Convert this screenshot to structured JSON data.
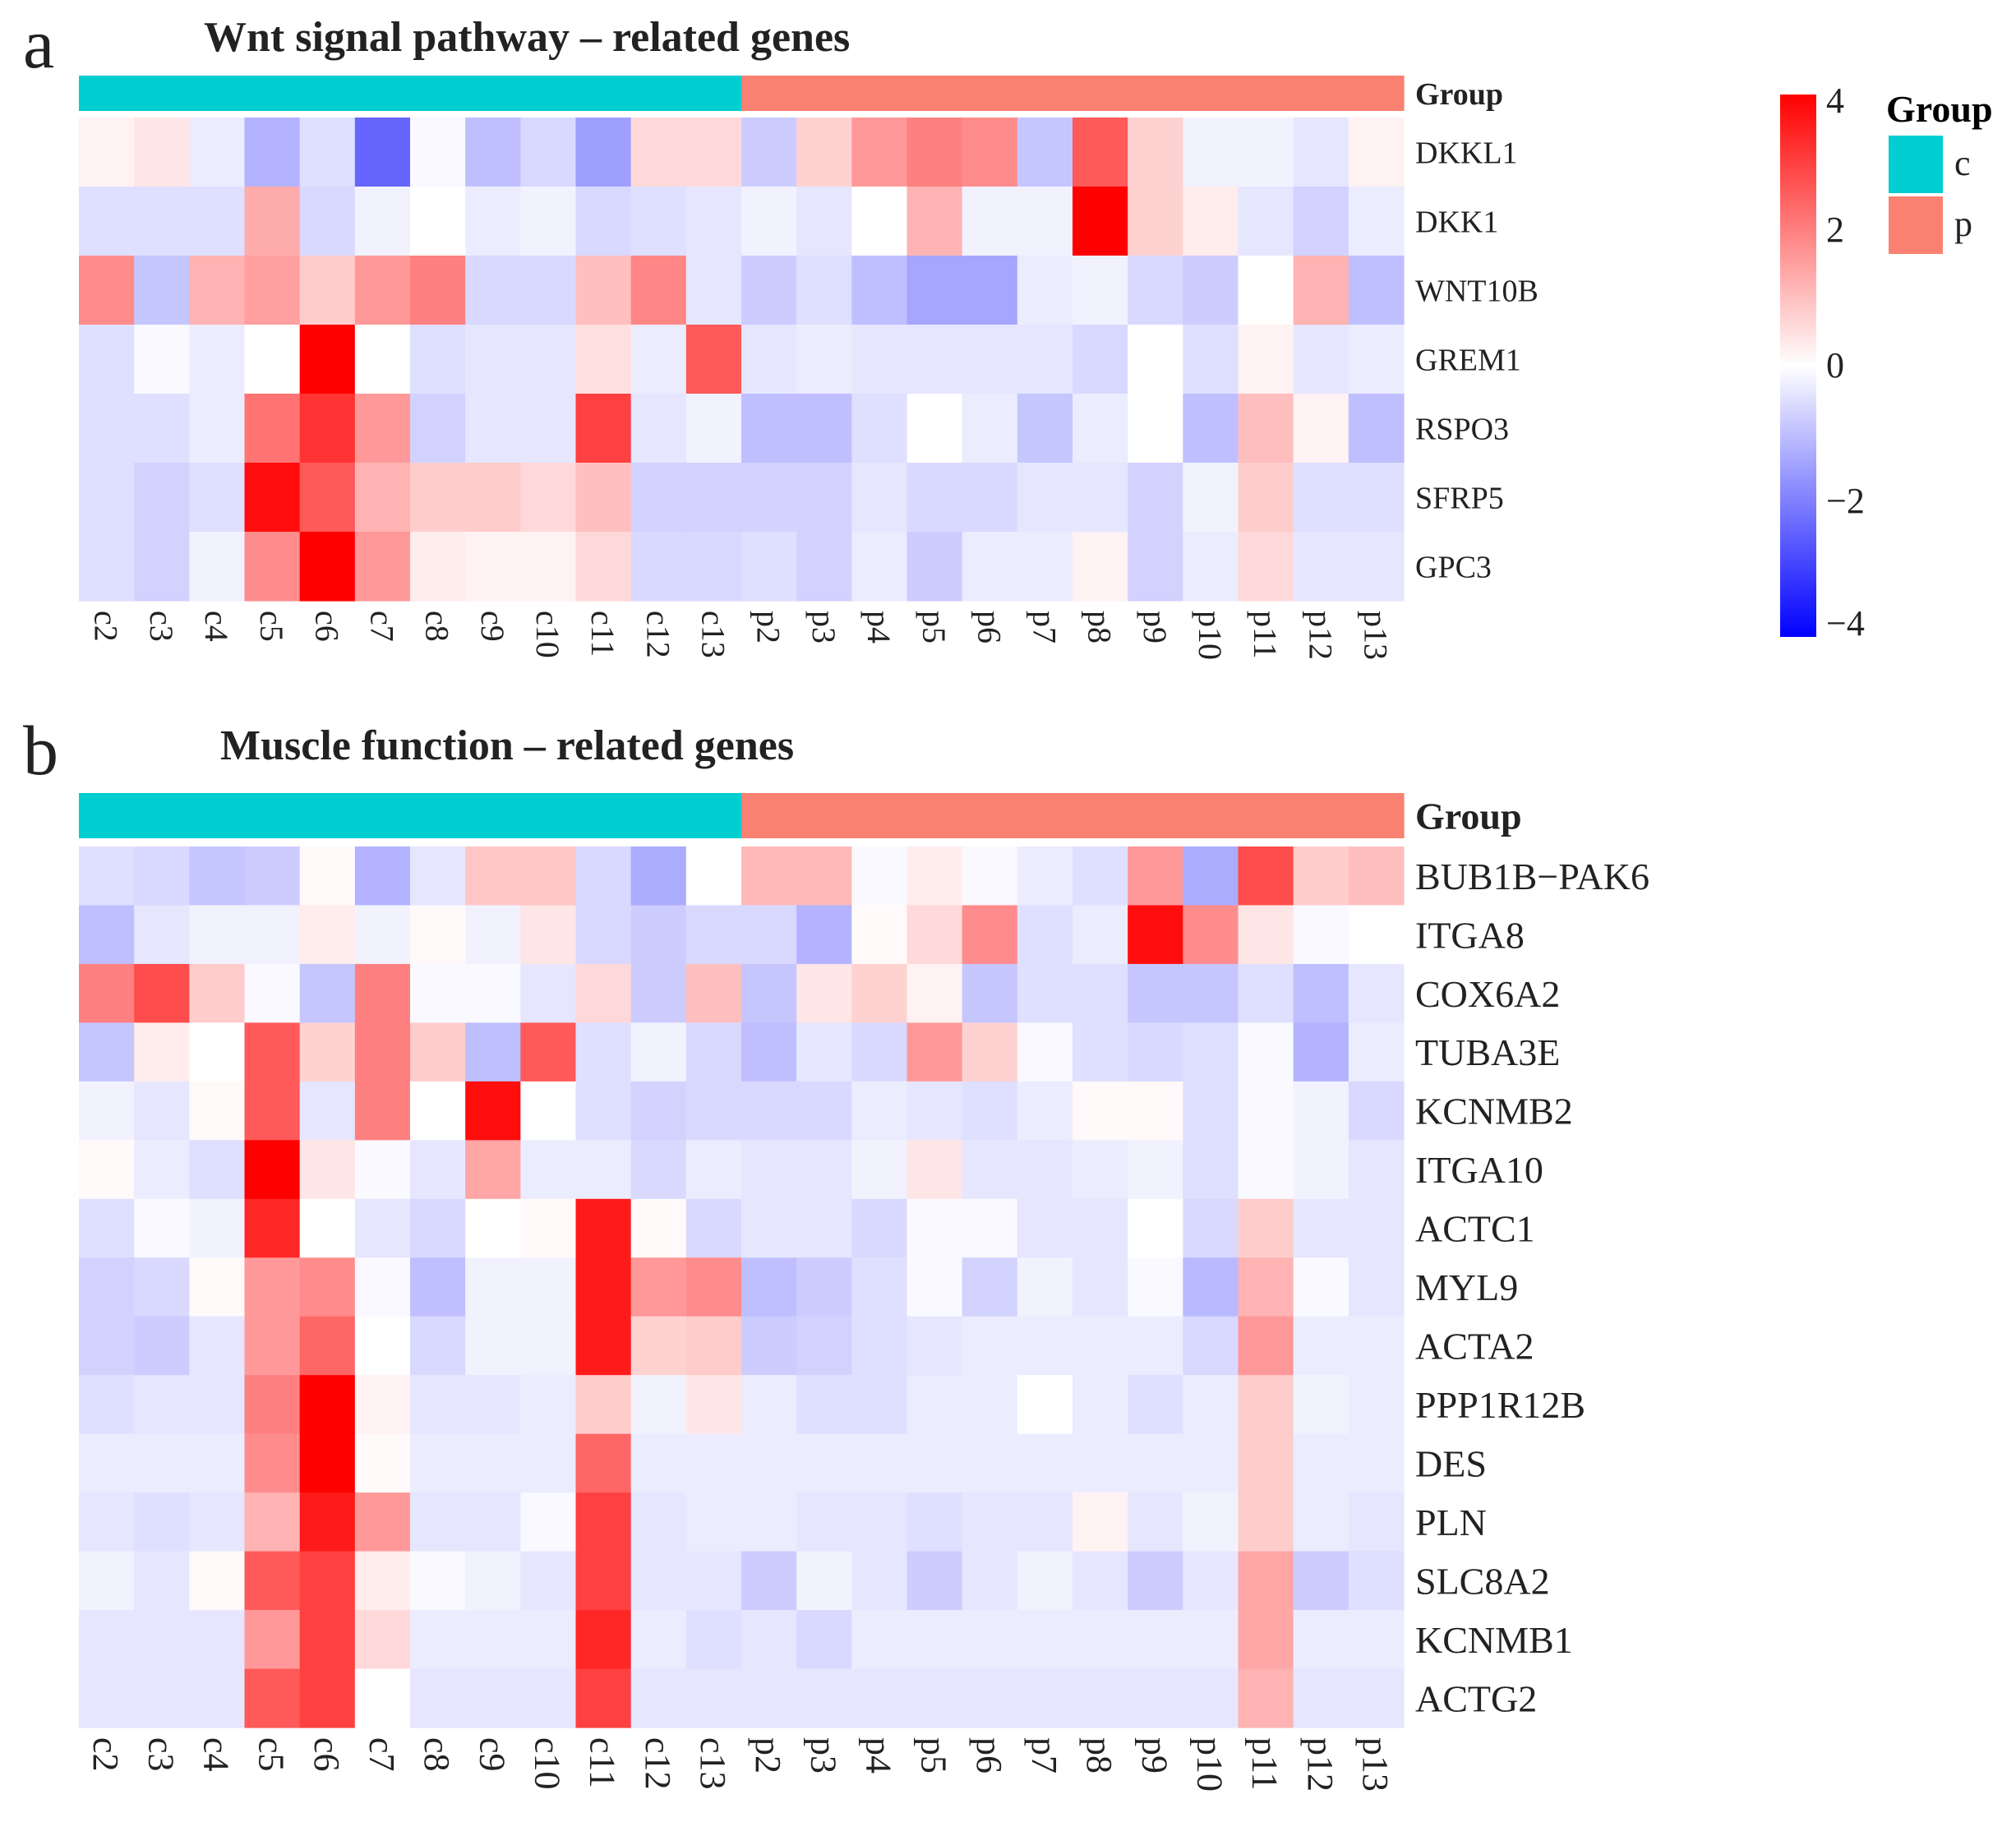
{
  "colors": {
    "group_c": "#00CED1",
    "group_p": "#FA8072",
    "scale_low": "#0000FF",
    "scale_mid": "#FFFFFF",
    "scale_high": "#FF0000"
  },
  "legend": {
    "group_title": "Group",
    "group_entries": [
      {
        "label": "c",
        "color": "#00CED1"
      },
      {
        "label": "p",
        "color": "#FA8072"
      }
    ],
    "scale_ticks": [
      "4",
      "2",
      "0",
      "−2",
      "−4"
    ],
    "scale_range": [
      -4,
      4
    ]
  },
  "chart_data": [
    {
      "type": "heatmap",
      "panel_label": "a",
      "title": "Wnt signal pathway – related genes",
      "annotation_label": "Group",
      "columns": [
        "c2",
        "c3",
        "c4",
        "c5",
        "c6",
        "c7",
        "c8",
        "c9",
        "c10",
        "c11",
        "c12",
        "c13",
        "p2",
        "p3",
        "p4",
        "p5",
        "p6",
        "p7",
        "p8",
        "p9",
        "p10",
        "p11",
        "p12",
        "p13"
      ],
      "column_groups": [
        "c",
        "c",
        "c",
        "c",
        "c",
        "c",
        "c",
        "c",
        "c",
        "c",
        "c",
        "c",
        "p",
        "p",
        "p",
        "p",
        "p",
        "p",
        "p",
        "p",
        "p",
        "p",
        "p",
        "p"
      ],
      "rows": [
        "DKKL1",
        "DKK1",
        "WNT10B",
        "GREM1",
        "RSPO3",
        "SFRP5",
        "GPC3"
      ],
      "values": [
        [
          0.2,
          0.4,
          -0.3,
          -1.2,
          -0.5,
          -2.4,
          -0.1,
          -1.0,
          -0.6,
          -1.5,
          0.6,
          0.6,
          -0.8,
          0.7,
          1.6,
          2.0,
          1.8,
          -0.9,
          2.6,
          0.7,
          -0.2,
          -0.2,
          -0.4,
          0.2
        ],
        [
          -0.5,
          -0.5,
          -0.5,
          1.3,
          -0.6,
          -0.2,
          0.0,
          -0.3,
          -0.2,
          -0.6,
          -0.5,
          -0.4,
          -0.2,
          -0.4,
          0.0,
          1.2,
          -0.2,
          -0.2,
          4.2,
          0.7,
          0.3,
          -0.4,
          -0.7,
          -0.3
        ],
        [
          1.8,
          -0.9,
          1.2,
          1.5,
          0.8,
          1.6,
          2.0,
          -0.6,
          -0.6,
          1.0,
          1.9,
          -0.4,
          -0.8,
          -0.5,
          -1.0,
          -1.4,
          -1.4,
          -0.3,
          -0.2,
          -0.6,
          -0.8,
          0.0,
          1.2,
          -1.0
        ],
        [
          -0.5,
          -0.1,
          -0.3,
          0.0,
          4.2,
          0.0,
          -0.5,
          -0.4,
          -0.4,
          0.5,
          -0.3,
          2.6,
          -0.4,
          -0.3,
          -0.4,
          -0.4,
          -0.4,
          -0.4,
          -0.6,
          0.0,
          -0.5,
          0.2,
          -0.4,
          -0.3
        ],
        [
          -0.5,
          -0.5,
          -0.3,
          2.2,
          3.2,
          1.6,
          -0.7,
          -0.4,
          -0.4,
          3.0,
          -0.4,
          -0.2,
          -1.0,
          -1.0,
          -0.5,
          0.0,
          -0.3,
          -0.9,
          -0.3,
          0.0,
          -1.0,
          1.0,
          0.2,
          -1.0
        ],
        [
          -0.5,
          -0.7,
          -0.5,
          3.8,
          2.6,
          1.2,
          0.8,
          0.8,
          0.6,
          1.0,
          -0.7,
          -0.7,
          -0.7,
          -0.7,
          -0.4,
          -0.6,
          -0.6,
          -0.4,
          -0.4,
          -0.7,
          -0.2,
          0.8,
          -0.5,
          -0.5
        ],
        [
          -0.5,
          -0.7,
          -0.2,
          1.8,
          4.2,
          1.6,
          0.3,
          0.2,
          0.2,
          0.6,
          -0.6,
          -0.6,
          -0.5,
          -0.7,
          -0.3,
          -0.8,
          -0.3,
          -0.3,
          0.2,
          -0.7,
          -0.3,
          0.6,
          -0.4,
          -0.4
        ]
      ]
    },
    {
      "type": "heatmap",
      "panel_label": "b",
      "title": "Muscle function – related genes",
      "annotation_label": "Group",
      "columns": [
        "c2",
        "c3",
        "c4",
        "c5",
        "c6",
        "c7",
        "c8",
        "c9",
        "c10",
        "c11",
        "c12",
        "c13",
        "p2",
        "p3",
        "p4",
        "p5",
        "p6",
        "p7",
        "p8",
        "p9",
        "p10",
        "p11",
        "p12",
        "p13"
      ],
      "column_groups": [
        "c",
        "c",
        "c",
        "c",
        "c",
        "c",
        "c",
        "c",
        "c",
        "c",
        "c",
        "c",
        "p",
        "p",
        "p",
        "p",
        "p",
        "p",
        "p",
        "p",
        "p",
        "p",
        "p",
        "p"
      ],
      "rows": [
        "BUB1B−PAK6",
        "ITGA8",
        "COX6A2",
        "TUBA3E",
        "KCNMB2",
        "ITGA10",
        "ACTC1",
        "MYL9",
        "ACTA2",
        "PPP1R12B",
        "DES",
        "PLN",
        "SLC8A2",
        "KCNMB1",
        "ACTG2"
      ],
      "values": [
        [
          -0.5,
          -0.6,
          -0.9,
          -0.8,
          0.1,
          -1.2,
          -0.4,
          0.9,
          0.9,
          -0.6,
          -1.3,
          0.0,
          1.1,
          1.1,
          -0.1,
          0.3,
          -0.1,
          -0.3,
          -0.5,
          1.6,
          -1.3,
          2.8,
          0.8,
          1.0
        ],
        [
          -1.0,
          -0.4,
          -0.2,
          -0.2,
          0.3,
          -0.2,
          0.1,
          -0.2,
          0.4,
          -0.6,
          -0.8,
          -0.6,
          -0.6,
          -1.2,
          0.1,
          0.6,
          1.8,
          -0.5,
          -0.3,
          3.8,
          1.8,
          0.4,
          -0.1,
          0.0
        ],
        [
          2.0,
          2.8,
          0.8,
          -0.1,
          -0.9,
          2.0,
          -0.1,
          -0.1,
          -0.4,
          0.6,
          -0.8,
          1.0,
          -0.9,
          0.4,
          0.7,
          0.2,
          -0.9,
          -0.5,
          -0.5,
          -0.9,
          -0.9,
          -0.5,
          -1.0,
          -0.4
        ],
        [
          -0.9,
          0.3,
          0.0,
          2.6,
          0.7,
          2.0,
          0.8,
          -1.0,
          2.6,
          -0.5,
          -0.2,
          -0.6,
          -1.0,
          -0.4,
          -0.6,
          1.6,
          0.7,
          -0.1,
          -0.5,
          -0.6,
          -0.5,
          -0.1,
          -1.2,
          -0.3
        ],
        [
          -0.2,
          -0.4,
          0.1,
          2.6,
          -0.4,
          2.0,
          0.0,
          3.8,
          0.0,
          -0.5,
          -0.7,
          -0.6,
          -0.6,
          -0.6,
          -0.3,
          -0.4,
          -0.5,
          -0.3,
          0.1,
          0.1,
          -0.5,
          -0.1,
          -0.2,
          -0.6
        ],
        [
          0.1,
          -0.3,
          -0.5,
          4.2,
          0.4,
          -0.1,
          -0.4,
          1.4,
          -0.3,
          -0.3,
          -0.6,
          -0.3,
          -0.4,
          -0.4,
          -0.2,
          0.4,
          -0.4,
          -0.4,
          -0.3,
          -0.2,
          -0.5,
          -0.1,
          -0.2,
          -0.4
        ],
        [
          -0.5,
          -0.1,
          -0.2,
          3.4,
          0.0,
          -0.4,
          -0.6,
          0.0,
          0.1,
          3.6,
          0.1,
          -0.6,
          -0.4,
          -0.4,
          -0.6,
          -0.1,
          -0.1,
          -0.4,
          -0.4,
          0.0,
          -0.6,
          0.8,
          -0.4,
          -0.4
        ],
        [
          -0.7,
          -0.6,
          0.1,
          1.6,
          1.8,
          -0.1,
          -1.0,
          -0.2,
          -0.2,
          3.6,
          1.6,
          1.8,
          -1.0,
          -0.8,
          -0.5,
          -0.1,
          -0.7,
          -0.2,
          -0.4,
          -0.1,
          -1.1,
          1.2,
          -0.1,
          -0.4
        ],
        [
          -0.7,
          -0.8,
          -0.4,
          1.6,
          2.4,
          0.0,
          -0.6,
          -0.2,
          -0.2,
          3.6,
          0.7,
          0.8,
          -0.8,
          -0.7,
          -0.5,
          -0.4,
          -0.3,
          -0.3,
          -0.3,
          -0.3,
          -0.6,
          1.6,
          -0.3,
          -0.3
        ],
        [
          -0.5,
          -0.4,
          -0.4,
          2.0,
          4.2,
          0.2,
          -0.4,
          -0.4,
          -0.3,
          0.8,
          -0.2,
          0.4,
          -0.3,
          -0.5,
          -0.5,
          -0.3,
          -0.3,
          0.0,
          -0.3,
          -0.5,
          -0.3,
          0.8,
          -0.2,
          -0.3
        ],
        [
          -0.3,
          -0.3,
          -0.3,
          1.8,
          4.0,
          0.1,
          -0.3,
          -0.3,
          -0.3,
          2.4,
          -0.3,
          -0.3,
          -0.3,
          -0.3,
          -0.3,
          -0.3,
          -0.3,
          -0.3,
          -0.3,
          -0.3,
          -0.3,
          0.8,
          -0.3,
          -0.3
        ],
        [
          -0.4,
          -0.5,
          -0.4,
          1.2,
          3.6,
          1.6,
          -0.4,
          -0.4,
          -0.1,
          3.0,
          -0.4,
          -0.3,
          -0.3,
          -0.4,
          -0.4,
          -0.5,
          -0.4,
          -0.4,
          0.2,
          -0.4,
          -0.2,
          0.8,
          -0.3,
          -0.4
        ],
        [
          -0.2,
          -0.4,
          0.1,
          2.6,
          3.0,
          0.3,
          -0.1,
          -0.2,
          -0.4,
          3.0,
          -0.4,
          -0.4,
          -0.8,
          -0.2,
          -0.4,
          -0.8,
          -0.4,
          -0.2,
          -0.4,
          -0.8,
          -0.4,
          1.4,
          -0.8,
          -0.5
        ],
        [
          -0.4,
          -0.4,
          -0.4,
          1.6,
          3.0,
          0.6,
          -0.3,
          -0.3,
          -0.3,
          3.4,
          -0.3,
          -0.5,
          -0.4,
          -0.6,
          -0.3,
          -0.3,
          -0.3,
          -0.3,
          -0.3,
          -0.3,
          -0.3,
          1.4,
          -0.3,
          -0.3
        ],
        [
          -0.4,
          -0.4,
          -0.4,
          2.6,
          3.0,
          0.0,
          -0.4,
          -0.4,
          -0.4,
          3.0,
          -0.4,
          -0.4,
          -0.4,
          -0.4,
          -0.4,
          -0.4,
          -0.4,
          -0.4,
          -0.4,
          -0.4,
          -0.4,
          1.2,
          -0.4,
          -0.4
        ]
      ]
    }
  ]
}
